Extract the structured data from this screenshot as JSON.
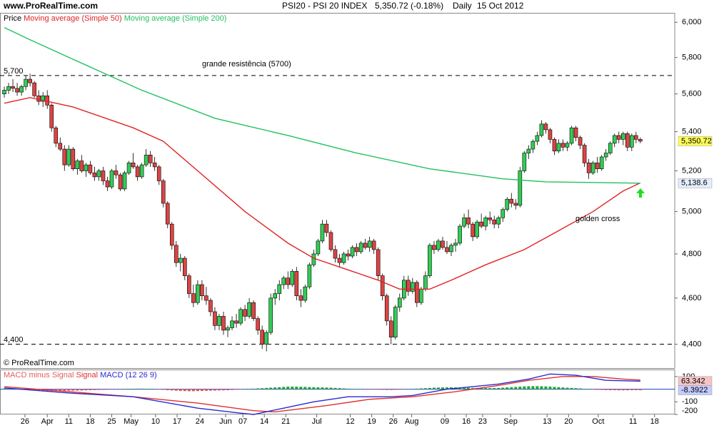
{
  "header": {
    "site": "www.ProRealTime.com",
    "title": "PSI20 - PSI 20 INDEX",
    "quote": "5,350.72 (-0.18%)",
    "period": "Daily",
    "date": "15 Oct 2012"
  },
  "chart_data": [
    {
      "type": "candlestick",
      "price_label": "Price",
      "watermark": "© ProRealTime.com",
      "log_scale": true,
      "up_color": "#33cc55",
      "down_color": "#dd4444",
      "xlim": [
        -1,
        156
      ],
      "ylim": [
        4300,
        6055
      ],
      "yticks": [
        {
          "value": 6000,
          "label": "6,000"
        },
        {
          "value": 5800,
          "label": "5,800"
        },
        {
          "value": 5600,
          "label": "5,600"
        },
        {
          "value": 5400,
          "label": "5,400"
        },
        {
          "value": 5200,
          "label": "5,200"
        },
        {
          "value": 5000,
          "label": "5,000"
        },
        {
          "value": 4800,
          "label": "4,800"
        },
        {
          "value": 4600,
          "label": "4,600"
        },
        {
          "value": 4400,
          "label": "4,400"
        }
      ],
      "xticks": [
        {
          "value": 4.8,
          "label": "26"
        },
        {
          "value": 10,
          "label": "Apr"
        },
        {
          "value": 15,
          "label": "11"
        },
        {
          "value": 20,
          "label": "18"
        },
        {
          "value": 25,
          "label": "25"
        },
        {
          "value": 29.5,
          "label": "May"
        },
        {
          "value": 35.2,
          "label": "10"
        },
        {
          "value": 40.2,
          "label": "17"
        },
        {
          "value": 45.5,
          "label": "24"
        },
        {
          "value": 51.5,
          "label": "Jun"
        },
        {
          "value": 55.5,
          "label": "07"
        },
        {
          "value": 60.5,
          "label": "14"
        },
        {
          "value": 65.5,
          "label": "21"
        },
        {
          "value": 72.7,
          "label": "Jul"
        },
        {
          "value": 80.5,
          "label": "12"
        },
        {
          "value": 85.5,
          "label": "19"
        },
        {
          "value": 90.5,
          "label": "26"
        },
        {
          "value": 94.8,
          "label": "Aug"
        },
        {
          "value": 102.5,
          "label": "09"
        },
        {
          "value": 107.5,
          "label": "16"
        },
        {
          "value": 111.3,
          "label": "23"
        },
        {
          "value": 117.8,
          "label": "Sep"
        },
        {
          "value": 126.3,
          "label": "13"
        },
        {
          "value": 131.3,
          "label": "20"
        },
        {
          "value": 138.2,
          "label": "Oct"
        },
        {
          "value": 146.3,
          "label": "11"
        },
        {
          "value": 151.3,
          "label": "18"
        }
      ],
      "open": [
        5600,
        5620,
        5640,
        5630,
        5610,
        5640,
        5680,
        5660,
        5590,
        5560,
        5590,
        5540,
        5420,
        5340,
        5310,
        5230,
        5310,
        5210,
        5250,
        5200,
        5230,
        5190,
        5170,
        5200,
        5150,
        5120,
        5200,
        5180,
        5110,
        5190,
        5240,
        5220,
        5170,
        5230,
        5280,
        5240,
        5220,
        5150,
        5040,
        4940,
        4840,
        4760,
        4780,
        4700,
        4620,
        4580,
        4660,
        4610,
        4590,
        4540,
        4480,
        4520,
        4460,
        4470,
        4500,
        4490,
        4550,
        4520,
        4580,
        4510,
        4460,
        4400,
        4450,
        4600,
        4620,
        4660,
        4690,
        4660,
        4720,
        4610,
        4590,
        4650,
        4750,
        4800,
        4860,
        4940,
        4900,
        4820,
        4780,
        4760,
        4800,
        4790,
        4830,
        4810,
        4850,
        4830,
        4860,
        4820,
        4700,
        4610,
        4500,
        4430,
        4560,
        4600,
        4680,
        4630,
        4670,
        4580,
        4640,
        4700,
        4840,
        4820,
        4860,
        4830,
        4810,
        4840,
        4850,
        4930,
        4970,
        4940,
        4880,
        4950,
        4930,
        4970,
        4960,
        4940,
        4970,
        5010,
        5060,
        5040,
        5030,
        5200,
        5290,
        5310,
        5350,
        5380,
        5440,
        5410,
        5360,
        5300,
        5340,
        5320,
        5340,
        5420,
        5370,
        5330,
        5240,
        5190,
        5240,
        5210,
        5270,
        5290,
        5340,
        5380,
        5360,
        5390,
        5320,
        5380,
        5360
      ],
      "high": [
        5640,
        5660,
        5680,
        5660,
        5650,
        5700,
        5710,
        5670,
        5620,
        5610,
        5620,
        5550,
        5430,
        5370,
        5330,
        5330,
        5320,
        5260,
        5280,
        5240,
        5250,
        5220,
        5210,
        5220,
        5170,
        5210,
        5230,
        5190,
        5200,
        5250,
        5290,
        5230,
        5240,
        5310,
        5300,
        5270,
        5230,
        5160,
        5050,
        4950,
        4860,
        4800,
        4790,
        4710,
        4660,
        4680,
        4680,
        4650,
        4600,
        4560,
        4530,
        4540,
        4480,
        4520,
        4530,
        4560,
        4570,
        4600,
        4590,
        4520,
        4480,
        4460,
        4620,
        4640,
        4680,
        4700,
        4720,
        4730,
        4740,
        4640,
        4660,
        4760,
        4820,
        4870,
        4960,
        4960,
        4910,
        4840,
        4800,
        4810,
        4820,
        4840,
        4850,
        4860,
        4870,
        4880,
        4870,
        4830,
        4710,
        4620,
        4520,
        4570,
        4620,
        4700,
        4700,
        4690,
        4680,
        4650,
        4720,
        4850,
        4860,
        4870,
        4880,
        4860,
        4850,
        4870,
        4940,
        4990,
        5010,
        4950,
        4960,
        4990,
        4980,
        5000,
        4980,
        4980,
        5020,
        5070,
        5090,
        5060,
        5220,
        5300,
        5330,
        5360,
        5400,
        5460,
        5450,
        5420,
        5370,
        5360,
        5360,
        5350,
        5430,
        5430,
        5380,
        5340,
        5260,
        5250,
        5270,
        5280,
        5310,
        5350,
        5390,
        5400,
        5400,
        5400,
        5390,
        5400,
        5370
      ],
      "low": [
        5580,
        5600,
        5610,
        5590,
        5590,
        5620,
        5640,
        5580,
        5540,
        5530,
        5520,
        5400,
        5320,
        5300,
        5200,
        5220,
        5200,
        5180,
        5190,
        5170,
        5180,
        5150,
        5150,
        5130,
        5100,
        5110,
        5160,
        5100,
        5100,
        5180,
        5210,
        5150,
        5160,
        5220,
        5220,
        5200,
        5130,
        5020,
        4920,
        4820,
        4740,
        4720,
        4680,
        4600,
        4560,
        4570,
        4590,
        4570,
        4520,
        4460,
        4460,
        4440,
        4430,
        4460,
        4470,
        4480,
        4500,
        4510,
        4500,
        4440,
        4380,
        4370,
        4440,
        4570,
        4590,
        4640,
        4640,
        4650,
        4590,
        4560,
        4580,
        4640,
        4740,
        4790,
        4850,
        4880,
        4810,
        4760,
        4740,
        4750,
        4770,
        4780,
        4790,
        4800,
        4820,
        4810,
        4800,
        4680,
        4590,
        4480,
        4400,
        4420,
        4540,
        4590,
        4610,
        4620,
        4560,
        4570,
        4630,
        4690,
        4800,
        4810,
        4820,
        4800,
        4790,
        4810,
        4840,
        4920,
        4920,
        4860,
        4870,
        4920,
        4910,
        4940,
        4920,
        4920,
        4950,
        5000,
        5020,
        5010,
        5020,
        5190,
        5260,
        5290,
        5330,
        5370,
        5390,
        5340,
        5280,
        5290,
        5300,
        5300,
        5330,
        5350,
        5310,
        5220,
        5160,
        5180,
        5190,
        5200,
        5250,
        5280,
        5320,
        5340,
        5330,
        5300,
        5300,
        5340,
        5340
      ],
      "close": [
        5620,
        5640,
        5630,
        5610,
        5640,
        5680,
        5660,
        5590,
        5560,
        5590,
        5540,
        5420,
        5340,
        5310,
        5230,
        5310,
        5210,
        5250,
        5200,
        5230,
        5190,
        5170,
        5200,
        5150,
        5120,
        5200,
        5180,
        5110,
        5190,
        5240,
        5220,
        5170,
        5230,
        5280,
        5240,
        5220,
        5150,
        5040,
        4940,
        4840,
        4760,
        4780,
        4700,
        4620,
        4580,
        4660,
        4610,
        4590,
        4540,
        4480,
        4520,
        4460,
        4470,
        4500,
        4490,
        4550,
        4520,
        4580,
        4510,
        4460,
        4400,
        4450,
        4600,
        4620,
        4660,
        4690,
        4660,
        4720,
        4610,
        4590,
        4650,
        4750,
        4800,
        4860,
        4940,
        4900,
        4820,
        4780,
        4760,
        4800,
        4790,
        4830,
        4810,
        4850,
        4830,
        4860,
        4820,
        4700,
        4610,
        4500,
        4430,
        4560,
        4600,
        4680,
        4630,
        4670,
        4580,
        4640,
        4700,
        4840,
        4820,
        4860,
        4830,
        4810,
        4840,
        4850,
        4930,
        4970,
        4940,
        4880,
        4950,
        4930,
        4970,
        4960,
        4940,
        4970,
        5010,
        5060,
        5040,
        5030,
        5200,
        5290,
        5310,
        5350,
        5380,
        5440,
        5410,
        5360,
        5300,
        5340,
        5320,
        5340,
        5420,
        5370,
        5330,
        5240,
        5190,
        5240,
        5210,
        5270,
        5290,
        5340,
        5380,
        5360,
        5390,
        5320,
        5380,
        5360,
        5350.72
      ],
      "series": [
        {
          "name": "Moving average (Simple 50)",
          "color": "#e02424",
          "x": [
            0,
            6,
            16,
            30,
            37,
            45,
            56,
            66,
            72,
            81,
            87,
            92,
            99,
            104,
            112,
            121,
            130,
            137,
            144,
            148
          ],
          "values": [
            5550,
            5580,
            5530,
            5420,
            5350,
            5200,
            5000,
            4850,
            4780,
            4720,
            4680,
            4640,
            4640,
            4680,
            4750,
            4820,
            4920,
            5000,
            5100,
            5140
          ]
        },
        {
          "name": "Moving average (Simple 200)",
          "color": "#22c060",
          "x": [
            0,
            6,
            16,
            32,
            49,
            66,
            82,
            99,
            116,
            126,
            148
          ],
          "values": [
            5970,
            5900,
            5790,
            5620,
            5470,
            5380,
            5290,
            5210,
            5160,
            5145,
            5138.6
          ]
        }
      ],
      "hlines": [
        {
          "value": 5700,
          "label": "5,700"
        },
        {
          "value": 4400,
          "label": "4,400"
        }
      ],
      "value_tags": [
        {
          "value": 5350.72,
          "label": "5,350.72",
          "color": "#ffff55"
        },
        {
          "value": 5138.6,
          "label": "5,138.6",
          "color": "#e4eeff"
        }
      ],
      "annotations": [
        {
          "text": "grande resistência (5700)",
          "color": "#1a1acc"
        },
        {
          "text": "golden cross",
          "color": "#000000"
        }
      ]
    },
    {
      "type": "macd",
      "params": "(12 26 9)",
      "ylim": [
        -200,
        150
      ],
      "yticks": [
        100,
        -100,
        -200
      ],
      "histogram": {
        "name": "MACD minus Signal",
        "color": "#e06060",
        "up_color": "#22aa33",
        "down_color": "#e05555",
        "values": [
          5,
          4,
          3,
          2,
          0,
          -3,
          -5,
          -8,
          -10,
          -12,
          -14,
          -15,
          -15,
          -14,
          -13,
          -12,
          -12,
          -11,
          -10,
          -9,
          -8,
          -7,
          -6,
          -5,
          -4,
          -3,
          -2,
          -1,
          0,
          2,
          3,
          4,
          4,
          3,
          2,
          0,
          -2,
          -5,
          -8,
          -10,
          -12,
          -14,
          -15,
          -16,
          -16,
          -15,
          -14,
          -13,
          -12,
          -11,
          -10,
          -9,
          -8,
          -6,
          -4,
          -2,
          0,
          2,
          4,
          6,
          8,
          10,
          12,
          14,
          16,
          18,
          20,
          20,
          20,
          19,
          18,
          17,
          16,
          15,
          14,
          13,
          12,
          10,
          8,
          6,
          4,
          2,
          1,
          0,
          -1,
          -2,
          -3,
          -4,
          -5,
          -6,
          -6,
          -5,
          -4,
          -2,
          0,
          2,
          4,
          6,
          8,
          10,
          12,
          13,
          14,
          15,
          15,
          14,
          13,
          12,
          11,
          10,
          10,
          10,
          9,
          9,
          9,
          10,
          12,
          14,
          16,
          18,
          20,
          22,
          23,
          24,
          24,
          23,
          22,
          20,
          18,
          16,
          14,
          12,
          10,
          8,
          6,
          3,
          0,
          -3,
          -5,
          -6,
          -7,
          -8,
          -8,
          -9,
          -9,
          -9,
          -8,
          -8,
          -8.3922
        ]
      },
      "series": [
        {
          "name": "Signal",
          "color": "#e03030",
          "x": [
            0,
            15,
            30,
            45,
            58,
            63,
            75,
            85,
            95,
            105,
            115,
            122,
            130,
            137,
            144,
            148
          ],
          "values": [
            20,
            -20,
            -60,
            -110,
            -170,
            -180,
            -130,
            -80,
            -60,
            -20,
            30,
            70,
            100,
            100,
            80,
            72
          ]
        },
        {
          "name": "MACD",
          "color": "#2a2ad0",
          "x": [
            0,
            15,
            30,
            45,
            55,
            58,
            65,
            72,
            80,
            90,
            95,
            103,
            115,
            122,
            127,
            133,
            140,
            148
          ],
          "values": [
            10,
            -30,
            -60,
            -150,
            -190,
            -200,
            -150,
            -100,
            -60,
            -60,
            -50,
            0,
            40,
            80,
            120,
            110,
            70,
            63.342
          ]
        }
      ],
      "value_tags": [
        {
          "value": 63.342,
          "label": "63.342",
          "color": "#f6c4c4"
        },
        {
          "value": -8.3922,
          "label": "-8.3922",
          "color": "#c4ccff"
        }
      ]
    }
  ]
}
